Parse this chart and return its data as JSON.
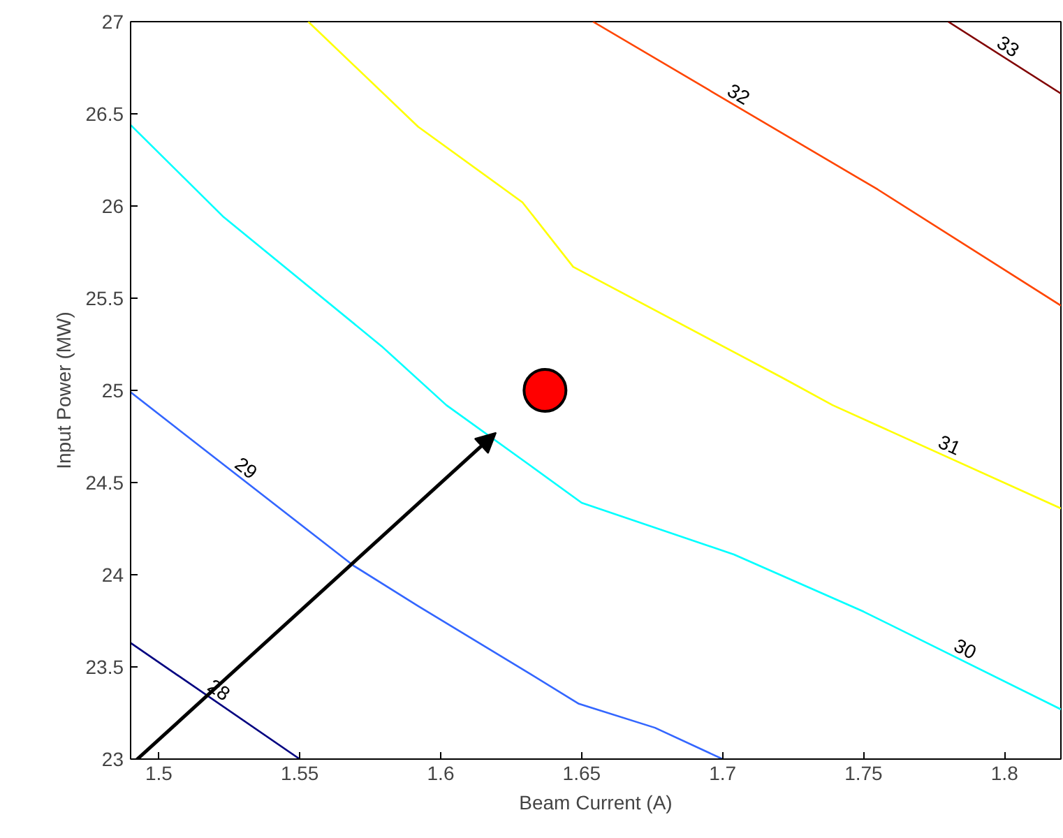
{
  "chart_data": {
    "type": "line",
    "xlabel": "Beam Current (A)",
    "ylabel": "Input Power (MW)",
    "xlim": [
      1.49,
      1.82
    ],
    "ylim": [
      23,
      27
    ],
    "xticks": [
      1.5,
      1.55,
      1.6,
      1.65,
      1.7,
      1.75,
      1.8
    ],
    "yticks": [
      23,
      23.5,
      24,
      24.5,
      25,
      25.5,
      26,
      26.5,
      27
    ],
    "grid": false,
    "line_style": "solid",
    "marker": "none",
    "series": [
      {
        "name": "28",
        "color": "#000080",
        "x": [
          1.49,
          1.55
        ],
        "values": [
          23.63,
          23.0
        ]
      },
      {
        "name": "29",
        "color": "#3366ff",
        "x": [
          1.49,
          1.569,
          1.592,
          1.632,
          1.649,
          1.676,
          1.7
        ],
        "values": [
          24.99,
          24.05,
          23.83,
          23.46,
          23.3,
          23.17,
          23.0
        ]
      },
      {
        "name": "30",
        "color": "#00ffff",
        "x": [
          1.49,
          1.523,
          1.579,
          1.602,
          1.632,
          1.65,
          1.704,
          1.75,
          1.82
        ],
        "values": [
          26.44,
          25.94,
          25.24,
          24.92,
          24.59,
          24.39,
          24.11,
          23.8,
          23.27
        ]
      },
      {
        "name": "31",
        "color": "#ffff00",
        "x": [
          1.553,
          1.592,
          1.629,
          1.647,
          1.721,
          1.739,
          1.82
        ],
        "values": [
          27.0,
          26.43,
          26.02,
          25.67,
          25.07,
          24.92,
          24.36
        ]
      },
      {
        "name": "32",
        "color": "#ff4500",
        "x": [
          1.654,
          1.755,
          1.82
        ],
        "values": [
          27.0,
          26.09,
          25.46
        ]
      },
      {
        "name": "33",
        "color": "#800000",
        "x": [
          1.78,
          1.82
        ],
        "values": [
          27.0,
          26.61
        ]
      },
      {
        "type": "scatter",
        "marker": "circle",
        "color": "#ff0000",
        "x": [
          1.637
        ],
        "values": [
          25.0
        ]
      }
    ]
  }
}
